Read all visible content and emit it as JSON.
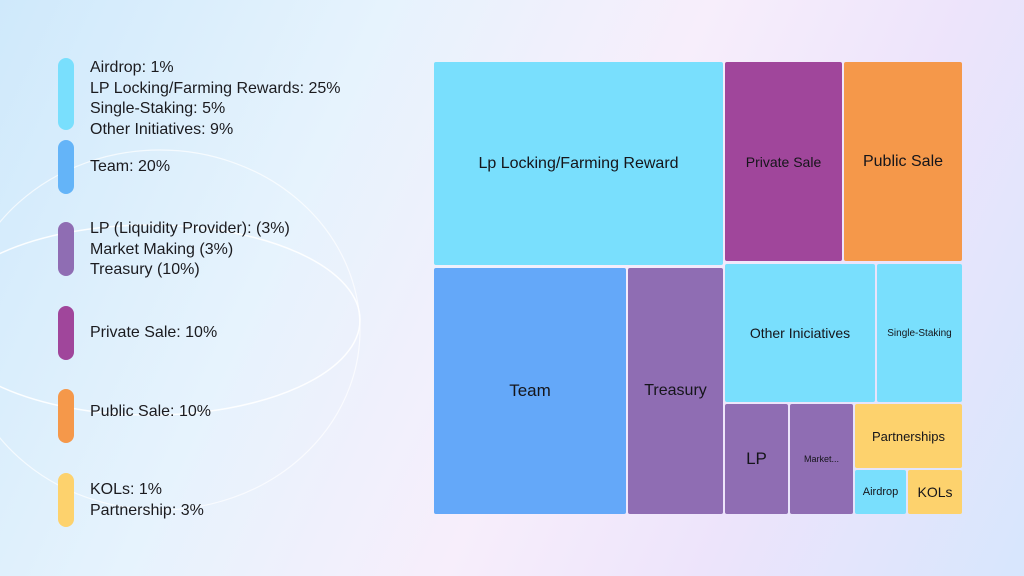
{
  "colors": {
    "cyan": "#79dffd",
    "blue": "#64a8f9",
    "lavender": "#8f6db3",
    "magenta": "#a0469b",
    "orange": "#f5984a",
    "yellow": "#fdd26d"
  },
  "legend": [
    {
      "color": "#79dffd",
      "items": [
        "Airdrop: 1%",
        "LP Locking/Farming Rewards: 25%",
        "Single-Staking: 5%",
        "Other Initiatives: 9%"
      ]
    },
    {
      "color": "#64b4f8",
      "items": [
        "Team: 20%"
      ]
    },
    {
      "color": "#8f6db3",
      "items": [
        "LP (Liquidity Provider): (3%)",
        "Market Making  (3%)",
        "Treasury (10%)"
      ]
    },
    {
      "color": "#a0469b",
      "items": [
        "Private Sale: 10%"
      ]
    },
    {
      "color": "#f5984a",
      "items": [
        "Public Sale: 10%"
      ]
    },
    {
      "color": "#fdd26d",
      "items": [
        "KOLs: 1%",
        "Partnership: 3%"
      ]
    }
  ],
  "chart_data": {
    "type": "treemap",
    "tiles": [
      {
        "label": "Lp Locking/Farming Reward",
        "value": 25,
        "color": "#79dffd"
      },
      {
        "label": "Private Sale",
        "value": 10,
        "color": "#a0469b"
      },
      {
        "label": "Public Sale",
        "value": 10,
        "color": "#f5984a"
      },
      {
        "label": "Team",
        "value": 20,
        "color": "#64a8f9"
      },
      {
        "label": "Treasury",
        "value": 10,
        "color": "#8f6db3"
      },
      {
        "label": "Other Iniciatives",
        "value": 9,
        "color": "#79dffd"
      },
      {
        "label": "Single-Staking",
        "value": 5,
        "color": "#79dffd"
      },
      {
        "label": "LP",
        "value": 3,
        "color": "#8f6db3"
      },
      {
        "label": "Market...",
        "value": 3,
        "color": "#8f6db3"
      },
      {
        "label": "Partnerships",
        "value": 3,
        "color": "#fdd26d"
      },
      {
        "label": "Airdrop",
        "value": 1,
        "color": "#79dffd"
      },
      {
        "label": "KOLs",
        "value": 1,
        "color": "#fdd26d"
      }
    ]
  }
}
